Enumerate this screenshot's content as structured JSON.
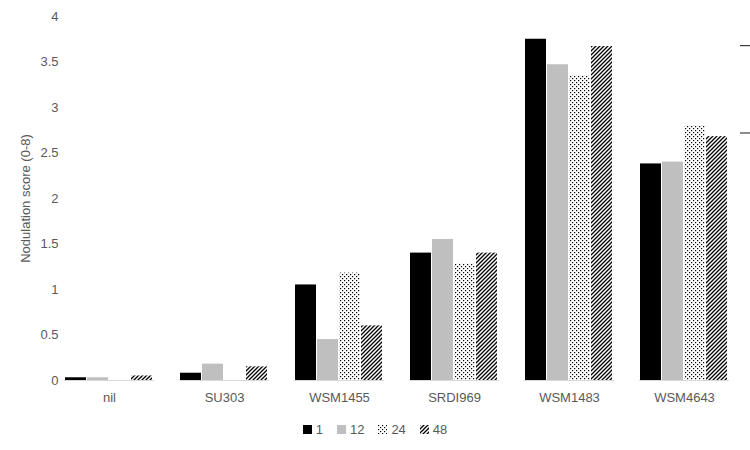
{
  "chart_data": {
    "type": "bar",
    "y_label": "Nodulation score (0-8)",
    "categories": [
      "nil",
      "SU303",
      "WSM1455",
      "SRDI969",
      "WSM1483",
      "WSM4643"
    ],
    "series": [
      {
        "name": "1",
        "color": "#000000",
        "values": [
          0.03,
          0.08,
          1.05,
          1.4,
          3.75,
          2.38
        ]
      },
      {
        "name": "12",
        "color": "#bfbfbf",
        "values": [
          0.03,
          0.18,
          0.45,
          1.55,
          3.47,
          2.4
        ]
      },
      {
        "name": "24",
        "color": "#000000",
        "values": [
          0,
          0,
          1.18,
          1.28,
          3.35,
          2.8
        ]
      },
      {
        "name": "48",
        "color": "#000000",
        "values": [
          0.05,
          0.15,
          0.6,
          1.4,
          3.67,
          2.68
        ]
      }
    ],
    "error_bar": {
      "category": "WSM4643",
      "low": 2.72,
      "high": 3.68
    },
    "ylim": [
      0,
      4
    ],
    "yticks": [
      0,
      0.5,
      1,
      1.5,
      2,
      2.5,
      3,
      3.5,
      4
    ],
    "grid": false,
    "legend": "bottom"
  }
}
